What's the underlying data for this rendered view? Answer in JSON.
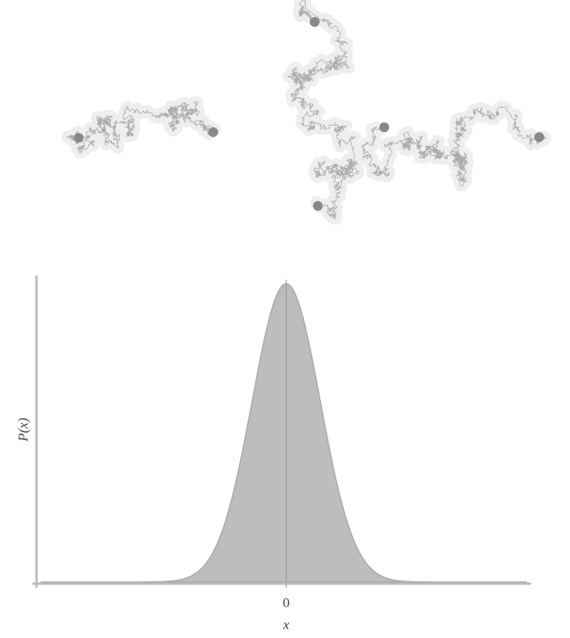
{
  "plot": {
    "y_label": "P(x)",
    "x_tick": "0",
    "x_label": "x"
  }
}
